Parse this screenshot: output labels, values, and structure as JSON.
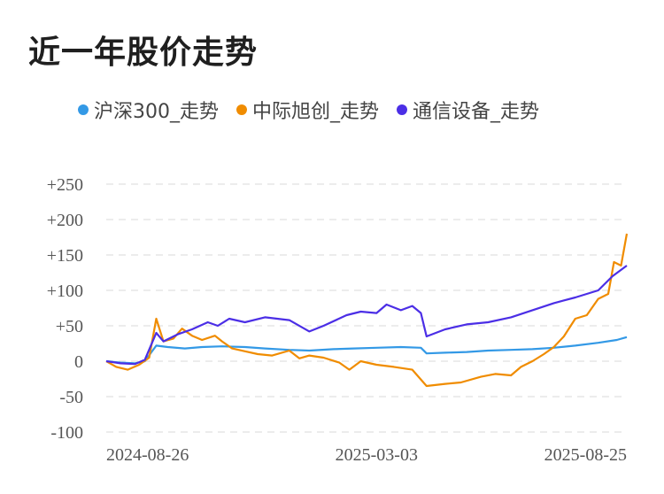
{
  "title": "近一年股价走势",
  "chart_data": {
    "type": "line",
    "title": "近一年股价走势",
    "xlabel": "",
    "ylabel": "",
    "ylim": [
      -100,
      250
    ],
    "yticks": [
      "+250",
      "+200",
      "+150",
      "+100",
      "+50",
      "0",
      "-50",
      "-100"
    ],
    "ytick_values": [
      250,
      200,
      150,
      100,
      50,
      0,
      -50,
      -100
    ],
    "xticks": [
      "2024-08-26",
      "2025-03-03",
      "2025-08-25"
    ],
    "x_range": [
      "2024-08-26",
      "2025-08-25"
    ],
    "grid": true,
    "legend_position": "top",
    "series": [
      {
        "name": "沪深300_走势",
        "color": "#3399e6",
        "points": [
          [
            "2024-08-26",
            0
          ],
          [
            "2024-09-05",
            -2
          ],
          [
            "2024-09-15",
            -3
          ],
          [
            "2024-09-22",
            0
          ],
          [
            "2024-09-30",
            22
          ],
          [
            "2024-10-08",
            20
          ],
          [
            "2024-10-20",
            18
          ],
          [
            "2024-11-01",
            20
          ],
          [
            "2024-11-15",
            21
          ],
          [
            "2024-12-01",
            20
          ],
          [
            "2024-12-15",
            18
          ],
          [
            "2025-01-01",
            16
          ],
          [
            "2025-01-15",
            15
          ],
          [
            "2025-02-01",
            17
          ],
          [
            "2025-02-15",
            18
          ],
          [
            "2025-03-03",
            19
          ],
          [
            "2025-03-20",
            20
          ],
          [
            "2025-04-03",
            19
          ],
          [
            "2025-04-07",
            11
          ],
          [
            "2025-04-20",
            12
          ],
          [
            "2025-05-05",
            13
          ],
          [
            "2025-05-20",
            15
          ],
          [
            "2025-06-05",
            16
          ],
          [
            "2025-06-20",
            17
          ],
          [
            "2025-07-05",
            19
          ],
          [
            "2025-07-20",
            22
          ],
          [
            "2025-08-05",
            26
          ],
          [
            "2025-08-18",
            30
          ],
          [
            "2025-08-25",
            34
          ]
        ]
      },
      {
        "name": "中际旭创_走势",
        "color": "#f08c00",
        "points": [
          [
            "2024-08-26",
            0
          ],
          [
            "2024-09-02",
            -8
          ],
          [
            "2024-09-10",
            -12
          ],
          [
            "2024-09-18",
            -5
          ],
          [
            "2024-09-25",
            5
          ],
          [
            "2024-09-30",
            60
          ],
          [
            "2024-10-05",
            28
          ],
          [
            "2024-10-12",
            32
          ],
          [
            "2024-10-18",
            46
          ],
          [
            "2024-10-25",
            36
          ],
          [
            "2024-11-01",
            30
          ],
          [
            "2024-11-10",
            36
          ],
          [
            "2024-11-15",
            28
          ],
          [
            "2024-11-22",
            18
          ],
          [
            "2024-12-01",
            14
          ],
          [
            "2024-12-10",
            10
          ],
          [
            "2024-12-20",
            8
          ],
          [
            "2025-01-01",
            15
          ],
          [
            "2025-01-08",
            4
          ],
          [
            "2025-01-15",
            8
          ],
          [
            "2025-01-25",
            5
          ],
          [
            "2025-02-05",
            -2
          ],
          [
            "2025-02-12",
            -12
          ],
          [
            "2025-02-20",
            0
          ],
          [
            "2025-03-03",
            -5
          ],
          [
            "2025-03-15",
            -8
          ],
          [
            "2025-03-28",
            -12
          ],
          [
            "2025-04-07",
            -35
          ],
          [
            "2025-04-20",
            -32
          ],
          [
            "2025-05-01",
            -30
          ],
          [
            "2025-05-15",
            -22
          ],
          [
            "2025-05-25",
            -18
          ],
          [
            "2025-06-05",
            -20
          ],
          [
            "2025-06-12",
            -8
          ],
          [
            "2025-06-20",
            0
          ],
          [
            "2025-06-28",
            10
          ],
          [
            "2025-07-05",
            20
          ],
          [
            "2025-07-12",
            35
          ],
          [
            "2025-07-20",
            60
          ],
          [
            "2025-07-28",
            65
          ],
          [
            "2025-08-05",
            88
          ],
          [
            "2025-08-12",
            95
          ],
          [
            "2025-08-16",
            140
          ],
          [
            "2025-08-21",
            135
          ],
          [
            "2025-08-25",
            180
          ]
        ]
      },
      {
        "name": "通信设备_走势",
        "color": "#4b2ee6",
        "points": [
          [
            "2024-08-26",
            0
          ],
          [
            "2024-09-05",
            -3
          ],
          [
            "2024-09-15",
            -4
          ],
          [
            "2024-09-22",
            2
          ],
          [
            "2024-09-30",
            40
          ],
          [
            "2024-10-05",
            28
          ],
          [
            "2024-10-15",
            38
          ],
          [
            "2024-10-25",
            45
          ],
          [
            "2024-11-05",
            55
          ],
          [
            "2024-11-12",
            50
          ],
          [
            "2024-11-20",
            60
          ],
          [
            "2024-12-01",
            55
          ],
          [
            "2024-12-15",
            62
          ],
          [
            "2025-01-01",
            58
          ],
          [
            "2025-01-15",
            42
          ],
          [
            "2025-01-25",
            50
          ],
          [
            "2025-02-10",
            65
          ],
          [
            "2025-02-20",
            70
          ],
          [
            "2025-03-03",
            68
          ],
          [
            "2025-03-10",
            80
          ],
          [
            "2025-03-20",
            72
          ],
          [
            "2025-03-28",
            78
          ],
          [
            "2025-04-03",
            68
          ],
          [
            "2025-04-07",
            35
          ],
          [
            "2025-04-20",
            45
          ],
          [
            "2025-05-05",
            52
          ],
          [
            "2025-05-20",
            55
          ],
          [
            "2025-06-05",
            62
          ],
          [
            "2025-06-20",
            72
          ],
          [
            "2025-07-05",
            82
          ],
          [
            "2025-07-20",
            90
          ],
          [
            "2025-08-05",
            100
          ],
          [
            "2025-08-15",
            120
          ],
          [
            "2025-08-25",
            135
          ]
        ]
      }
    ]
  }
}
